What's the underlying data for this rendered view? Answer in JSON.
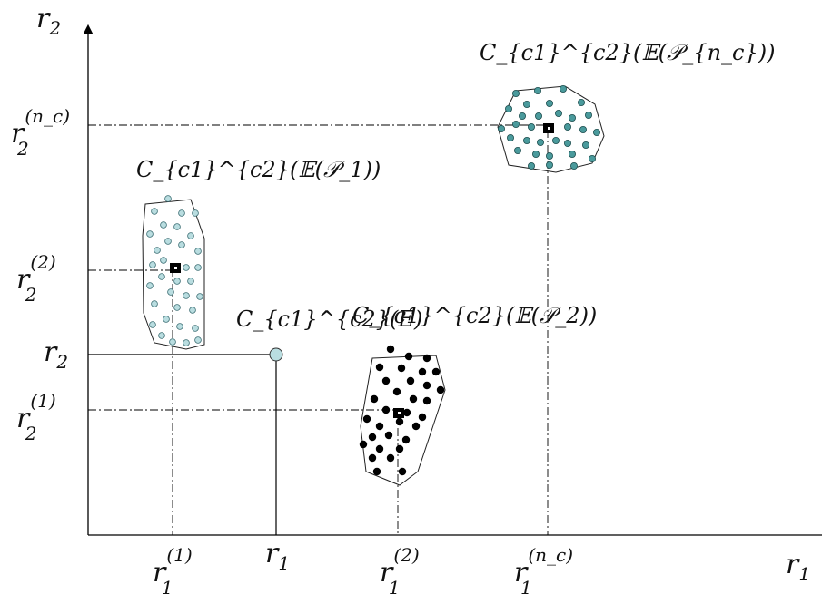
{
  "axes": {
    "x_label_corner": "r",
    "x_label_corner_sub": "1",
    "y_label_top": "r",
    "y_label_top_sub": "2"
  },
  "x_ticks": [
    {
      "base": "r",
      "sub": "1",
      "sup": "(1)"
    },
    {
      "base": "r",
      "sub": "1",
      "sup": ""
    },
    {
      "base": "r",
      "sub": "1",
      "sup": "(2)"
    },
    {
      "base": "r",
      "sub": "1",
      "sup": "(n_c)"
    }
  ],
  "y_ticks": [
    {
      "base": "r",
      "sub": "2",
      "sup": "(n_c)"
    },
    {
      "base": "r",
      "sub": "2",
      "sup": "(2)"
    },
    {
      "base": "r",
      "sub": "2",
      "sup": ""
    },
    {
      "base": "r",
      "sub": "2",
      "sup": "(1)"
    }
  ],
  "annotations": {
    "cluster_nc": "C_{c1}^{c2}(𝔼(𝒫_{n_c}))",
    "cluster_1": "C_{c1}^{c2}(𝔼(𝒫_1))",
    "point_e": "C_{c1}^{c2}(E)",
    "cluster_2": "C_{c1}^{c2}(𝔼(𝒫_2))"
  },
  "colors": {
    "cluster_1_fill": "#b9dde0",
    "cluster_nc_fill": "#4a9a9c",
    "cluster_2_fill": "#000000",
    "point_e_fill": "#b9dde0",
    "axis": "#000000"
  }
}
